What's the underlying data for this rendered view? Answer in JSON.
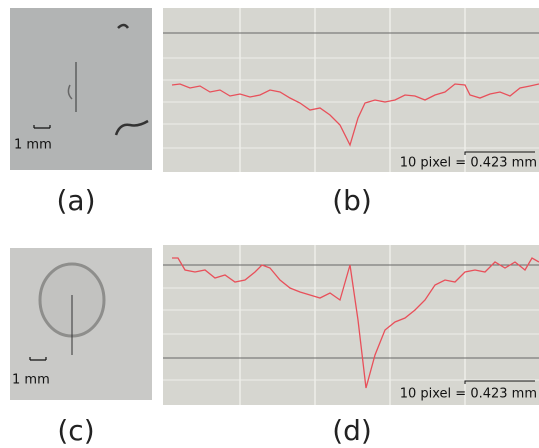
{
  "panels": [
    {
      "scale_label": "1 mm",
      "caption": "(a)"
    },
    {
      "scale_label": "10 pixel = 0.423 mm",
      "caption": "(b)"
    },
    {
      "scale_label": "1 mm",
      "caption": "(c)"
    },
    {
      "scale_label": "10 pixel = 0.423 mm",
      "caption": "(d)"
    }
  ]
}
